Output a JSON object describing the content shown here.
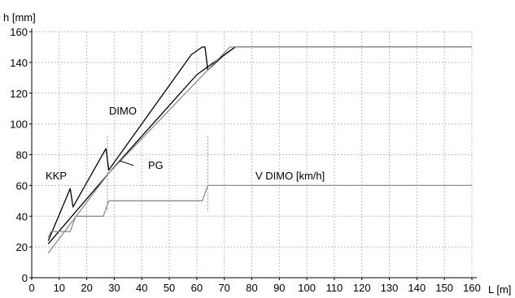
{
  "chart_data": {
    "type": "line",
    "title": "",
    "xlabel": "L [m]",
    "ylabel": "h [mm]",
    "xlim": [
      0,
      160
    ],
    "ylim": [
      0,
      160
    ],
    "xticks": [
      0,
      10,
      20,
      30,
      40,
      50,
      60,
      70,
      80,
      90,
      100,
      110,
      120,
      130,
      140,
      150,
      160
    ],
    "yticks": [
      0,
      20,
      40,
      60,
      80,
      100,
      120,
      140,
      160
    ],
    "grid": true,
    "vlines": [
      27.5,
      64
    ],
    "colors": {
      "dark": "#000000",
      "light": "#8c8c8c",
      "grid": "#bfbfbf"
    },
    "series": [
      {
        "name": "DIMO",
        "color": "#000000",
        "x": [
          6,
          14,
          15,
          27,
          28,
          58,
          62,
          63,
          64,
          70,
          74,
          160
        ],
        "y": [
          24,
          58,
          46,
          84,
          70,
          145,
          150,
          150,
          135,
          145,
          150,
          150
        ]
      },
      {
        "name": "KKP",
        "color": "#000000",
        "x": [
          6,
          28,
          60,
          74
        ],
        "y": [
          22,
          68,
          132,
          150
        ]
      },
      {
        "name": "PG",
        "color": "#8c8c8c",
        "x": [
          6,
          28,
          72,
          160
        ],
        "y": [
          16,
          68,
          150,
          150
        ]
      },
      {
        "name": "V DIMO [km/h]",
        "color": "#8c8c8c",
        "x": [
          6,
          7,
          14,
          15,
          16,
          26,
          27,
          28,
          29,
          62,
          63,
          64,
          160
        ],
        "y": [
          26,
          30,
          30,
          35,
          40,
          40,
          45,
          50,
          50,
          50,
          55,
          60,
          60
        ]
      }
    ]
  }
}
